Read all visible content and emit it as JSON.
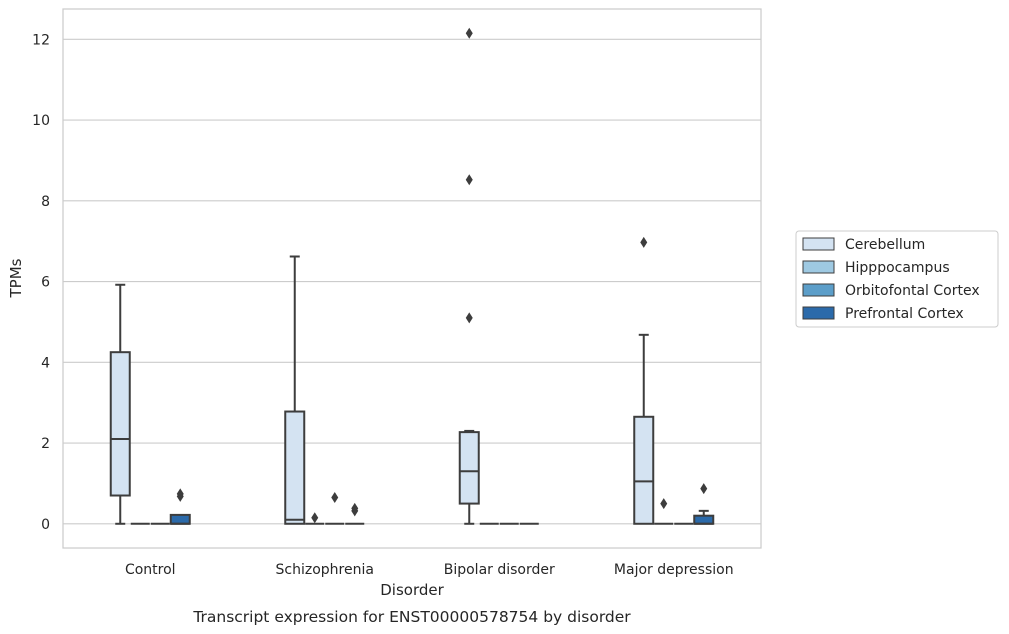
{
  "caption": "Transcript expression for ENST00000578754 by disorder",
  "chart_data": {
    "type": "box",
    "xlabel": "Disorder",
    "ylabel": "TPMs",
    "categories": [
      "Control",
      "Schizophrenia",
      "Bipolar disorder",
      "Major depression"
    ],
    "ylim": [
      -0.6,
      12.75
    ],
    "yticks": [
      0,
      2,
      4,
      6,
      8,
      10,
      12
    ],
    "grid": true,
    "legend_position": "right",
    "series": [
      {
        "name": "Cerebellum",
        "color": "#d4e3f2",
        "boxes": [
          {
            "category": "Control",
            "whisker_low": 0,
            "q1": 0.7,
            "median": 2.1,
            "q3": 4.25,
            "whisker_high": 5.92,
            "outliers": []
          },
          {
            "category": "Schizophrenia",
            "whisker_low": 0,
            "q1": 0,
            "median": 0.1,
            "q3": 2.78,
            "whisker_high": 6.62,
            "outliers": []
          },
          {
            "category": "Bipolar disorder",
            "whisker_low": 0,
            "q1": 0.5,
            "median": 1.3,
            "q3": 2.27,
            "whisker_high": 2.3,
            "outliers": [
              5.1,
              8.52,
              12.15
            ]
          },
          {
            "category": "Major depression",
            "whisker_low": 0,
            "q1": 0,
            "median": 1.05,
            "q3": 2.65,
            "whisker_high": 4.68,
            "outliers": [
              6.97
            ]
          }
        ]
      },
      {
        "name": "Hipppocampus",
        "color": "#9ec9e2",
        "boxes": [
          {
            "category": "Control",
            "whisker_low": 0,
            "q1": 0,
            "median": 0,
            "q3": 0,
            "whisker_high": 0,
            "outliers": []
          },
          {
            "category": "Schizophrenia",
            "whisker_low": 0,
            "q1": 0,
            "median": 0,
            "q3": 0,
            "whisker_high": 0,
            "outliers": [
              0.15
            ]
          },
          {
            "category": "Bipolar disorder",
            "whisker_low": 0,
            "q1": 0,
            "median": 0,
            "q3": 0,
            "whisker_high": 0,
            "outliers": []
          },
          {
            "category": "Major depression",
            "whisker_low": 0,
            "q1": 0,
            "median": 0,
            "q3": 0,
            "whisker_high": 0,
            "outliers": [
              0.5
            ]
          }
        ]
      },
      {
        "name": "Orbitofontal Cortex",
        "color": "#5c9ec9",
        "boxes": [
          {
            "category": "Control",
            "whisker_low": 0,
            "q1": 0,
            "median": 0,
            "q3": 0,
            "whisker_high": 0,
            "outliers": []
          },
          {
            "category": "Schizophrenia",
            "whisker_low": 0,
            "q1": 0,
            "median": 0,
            "q3": 0,
            "whisker_high": 0,
            "outliers": [
              0.65
            ]
          },
          {
            "category": "Bipolar disorder",
            "whisker_low": 0,
            "q1": 0,
            "median": 0,
            "q3": 0,
            "whisker_high": 0,
            "outliers": []
          },
          {
            "category": "Major depression",
            "whisker_low": 0,
            "q1": 0,
            "median": 0,
            "q3": 0,
            "whisker_high": 0,
            "outliers": []
          }
        ]
      },
      {
        "name": "Prefrontal Cortex",
        "color": "#2b6aaa",
        "boxes": [
          {
            "category": "Control",
            "whisker_low": 0,
            "q1": 0,
            "median": 0,
            "q3": 0.22,
            "whisker_high": 0.22,
            "outliers": [
              0.68,
              0.74
            ]
          },
          {
            "category": "Schizophrenia",
            "whisker_low": 0,
            "q1": 0,
            "median": 0,
            "q3": 0,
            "whisker_high": 0,
            "outliers": [
              0.32,
              0.38
            ]
          },
          {
            "category": "Bipolar disorder",
            "whisker_low": 0,
            "q1": 0,
            "median": 0,
            "q3": 0,
            "whisker_high": 0,
            "outliers": []
          },
          {
            "category": "Major depression",
            "whisker_low": 0,
            "q1": 0,
            "median": 0,
            "q3": 0.2,
            "whisker_high": 0.32,
            "outliers": [
              0.87
            ]
          }
        ]
      }
    ]
  }
}
